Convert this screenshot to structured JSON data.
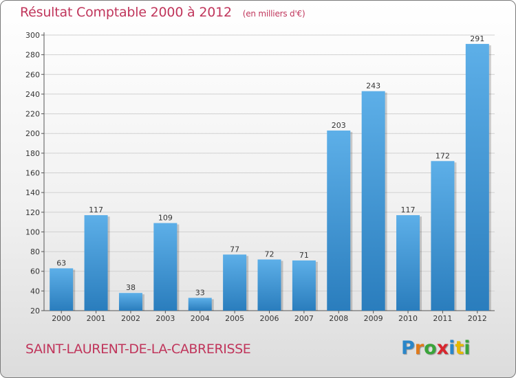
{
  "title": "Résultat Comptable 2000 à 2012",
  "subtitle": "(en milliers d'€)",
  "commune": "SAINT-LAURENT-DE-LA-CABRERISSE",
  "logo": {
    "letters": [
      {
        "char": "P",
        "color": "#2a86c9"
      },
      {
        "char": "r",
        "color": "#e07a1c"
      },
      {
        "char": "o",
        "color": "#3aa43a"
      },
      {
        "char": "x",
        "color": "#d8262e"
      },
      {
        "char": "i",
        "color": "#2a86c9"
      },
      {
        "char": "t",
        "color": "#e6b800"
      },
      {
        "char": "i",
        "color": "#3aa43a"
      }
    ]
  },
  "colors": {
    "bar_light": "#5dafe8",
    "bar_dark": "#2a7dbd",
    "title": "#c0355b",
    "axis": "#555555",
    "grid": "#d0d0d0"
  },
  "chart_data": {
    "type": "bar",
    "title": "Résultat Comptable 2000 à 2012",
    "categories": [
      "2000",
      "2001",
      "2002",
      "2003",
      "2004",
      "2005",
      "2006",
      "2007",
      "2008",
      "2009",
      "2010",
      "2011",
      "2012"
    ],
    "values": [
      63,
      117,
      38,
      109,
      33,
      77,
      72,
      71,
      203,
      243,
      117,
      172,
      291
    ],
    "ylim": [
      20,
      300
    ],
    "yticks": [
      20,
      40,
      60,
      80,
      100,
      120,
      140,
      160,
      180,
      200,
      220,
      240,
      260,
      280,
      300
    ],
    "grid": true,
    "data_labels": true
  }
}
